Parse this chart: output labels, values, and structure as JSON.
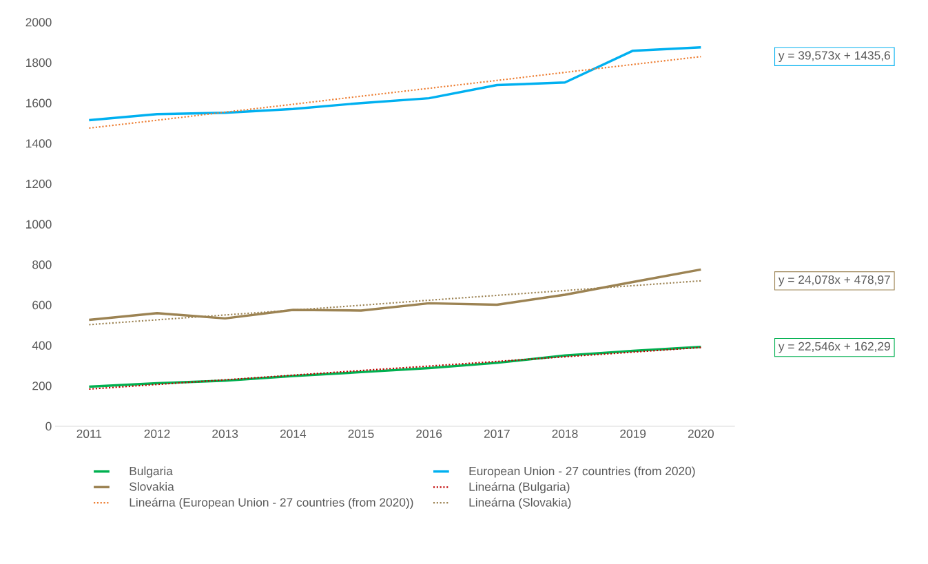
{
  "chart_data": {
    "type": "line",
    "x": [
      2011,
      2012,
      2013,
      2014,
      2015,
      2016,
      2017,
      2018,
      2019,
      2020
    ],
    "xlim": [
      2010.5,
      2020.5
    ],
    "xticks": [
      2011,
      2012,
      2013,
      2014,
      2015,
      2016,
      2017,
      2018,
      2019,
      2020
    ],
    "ylim": [
      0,
      2000
    ],
    "yticks": [
      0,
      200,
      400,
      600,
      800,
      1000,
      1200,
      1400,
      1600,
      1800,
      2000
    ],
    "legend": "bottom",
    "series": [
      {
        "name": "Bulgaria",
        "color": "#00b050",
        "line_style": "solid",
        "values": [
          196,
          213,
          226,
          249,
          268,
          288,
          314,
          350,
          373,
          393
        ]
      },
      {
        "name": "European Union - 27 countries (from 2020)",
        "color": "#00b0f0",
        "line_style": "solid",
        "values": [
          1515,
          1545,
          1552,
          1571,
          1600,
          1624,
          1689,
          1702,
          1859,
          1876
        ]
      },
      {
        "name": "Slovakia",
        "color": "#9c8353",
        "line_style": "solid",
        "values": [
          527,
          560,
          534,
          576,
          573,
          609,
          602,
          651,
          714,
          776
        ]
      },
      {
        "name": "Lineárna (Bulgaria)",
        "color": "#c00000",
        "line_style": "dotted",
        "values": [
          184,
          207,
          230,
          253,
          276,
          298,
          321,
          344,
          367,
          390
        ]
      },
      {
        "name": "Lineárna (European Union - 27 countries (from 2020))",
        "color": "#ed7d31",
        "line_style": "dotted",
        "values": [
          1476,
          1515,
          1555,
          1594,
          1634,
          1673,
          1712,
          1752,
          1791,
          1830
        ]
      },
      {
        "name": "Lineárna (Slovakia)",
        "color": "#9c8353",
        "line_style": "dotted",
        "values": [
          503,
          527,
          551,
          575,
          599,
          624,
          648,
          672,
          696,
          720
        ]
      }
    ],
    "annotations": [
      "y = 22,546x + 162,29",
      "y = 39,573x + 1435,6",
      "y = 24,078x + 478,97"
    ]
  }
}
